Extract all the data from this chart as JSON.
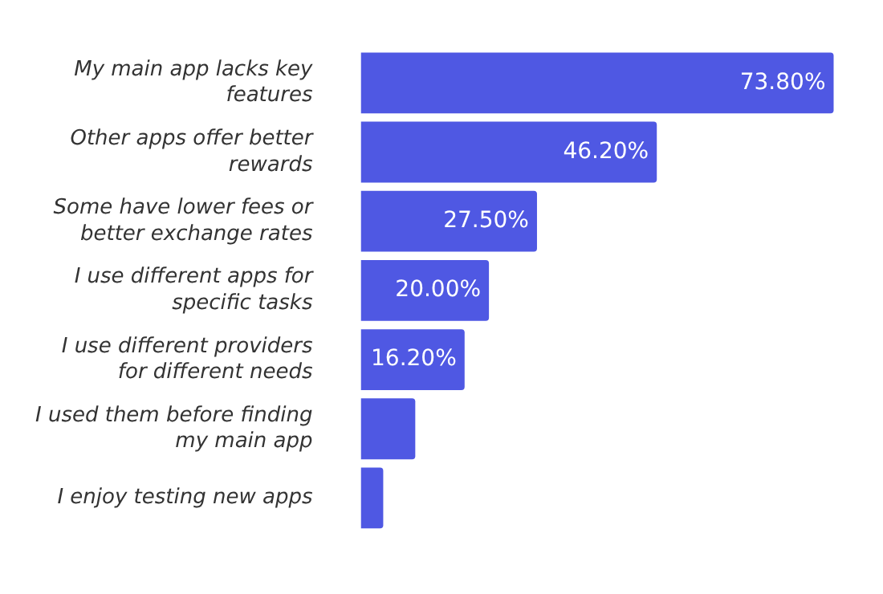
{
  "chart_data": {
    "type": "bar",
    "orientation": "horizontal",
    "categories": [
      "My main app lacks key features",
      "Other apps offer better rewards",
      "Some have lower fees or better exchange rates",
      "I use different apps for specific tasks",
      "I use different providers for different needs",
      "I used them before finding my main app",
      "I enjoy testing new apps"
    ],
    "values": [
      73.8,
      46.2,
      27.5,
      20.0,
      16.2,
      8.5,
      3.5
    ],
    "value_labels": [
      "73.80%",
      "46.20%",
      "27.50%",
      "20.00%",
      "16.20%",
      null,
      null
    ],
    "color": "#4f58e3",
    "grid": false,
    "legend": false,
    "tick_labels": "y"
  }
}
